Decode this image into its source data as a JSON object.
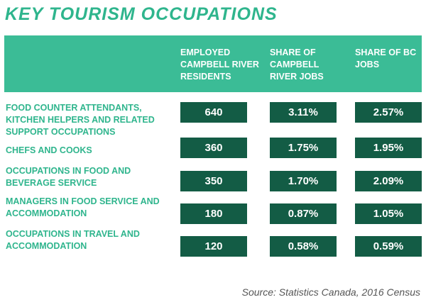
{
  "title": "KEY TOURISM OCCUPATIONS",
  "columns": [
    "EMPLOYED CAMPBELL RIVER RESIDENTS",
    "SHARE OF CAMPBELL RIVER JOBS",
    "SHARE OF BC JOBS"
  ],
  "rows": [
    {
      "label": "FOOD COUNTER ATTENDANTS, KITCHEN HELPERS AND RELATED SUPPORT OCCUPATIONS",
      "values": [
        "640",
        "3.11%",
        "2.57%"
      ]
    },
    {
      "label": "CHEFS AND COOKS",
      "values": [
        "360",
        "1.75%",
        "1.95%"
      ]
    },
    {
      "label": "OCCUPATIONS IN FOOD AND BEVERAGE SERVICE",
      "values": [
        "350",
        "1.70%",
        "2.09%"
      ]
    },
    {
      "label": "MANAGERS IN FOOD SERVICE AND ACCOMMODATION",
      "values": [
        "180",
        "0.87%",
        "1.05%"
      ]
    },
    {
      "label": "OCCUPATIONS IN TRAVEL AND ACCOMMODATION",
      "values": [
        "120",
        "0.58%",
        "0.59%"
      ]
    }
  ],
  "source": "Source: Statistics Canada, 2016 Census",
  "colors": {
    "accent": "#3bbc96",
    "title": "#2fb58d",
    "box": "#135c45"
  }
}
